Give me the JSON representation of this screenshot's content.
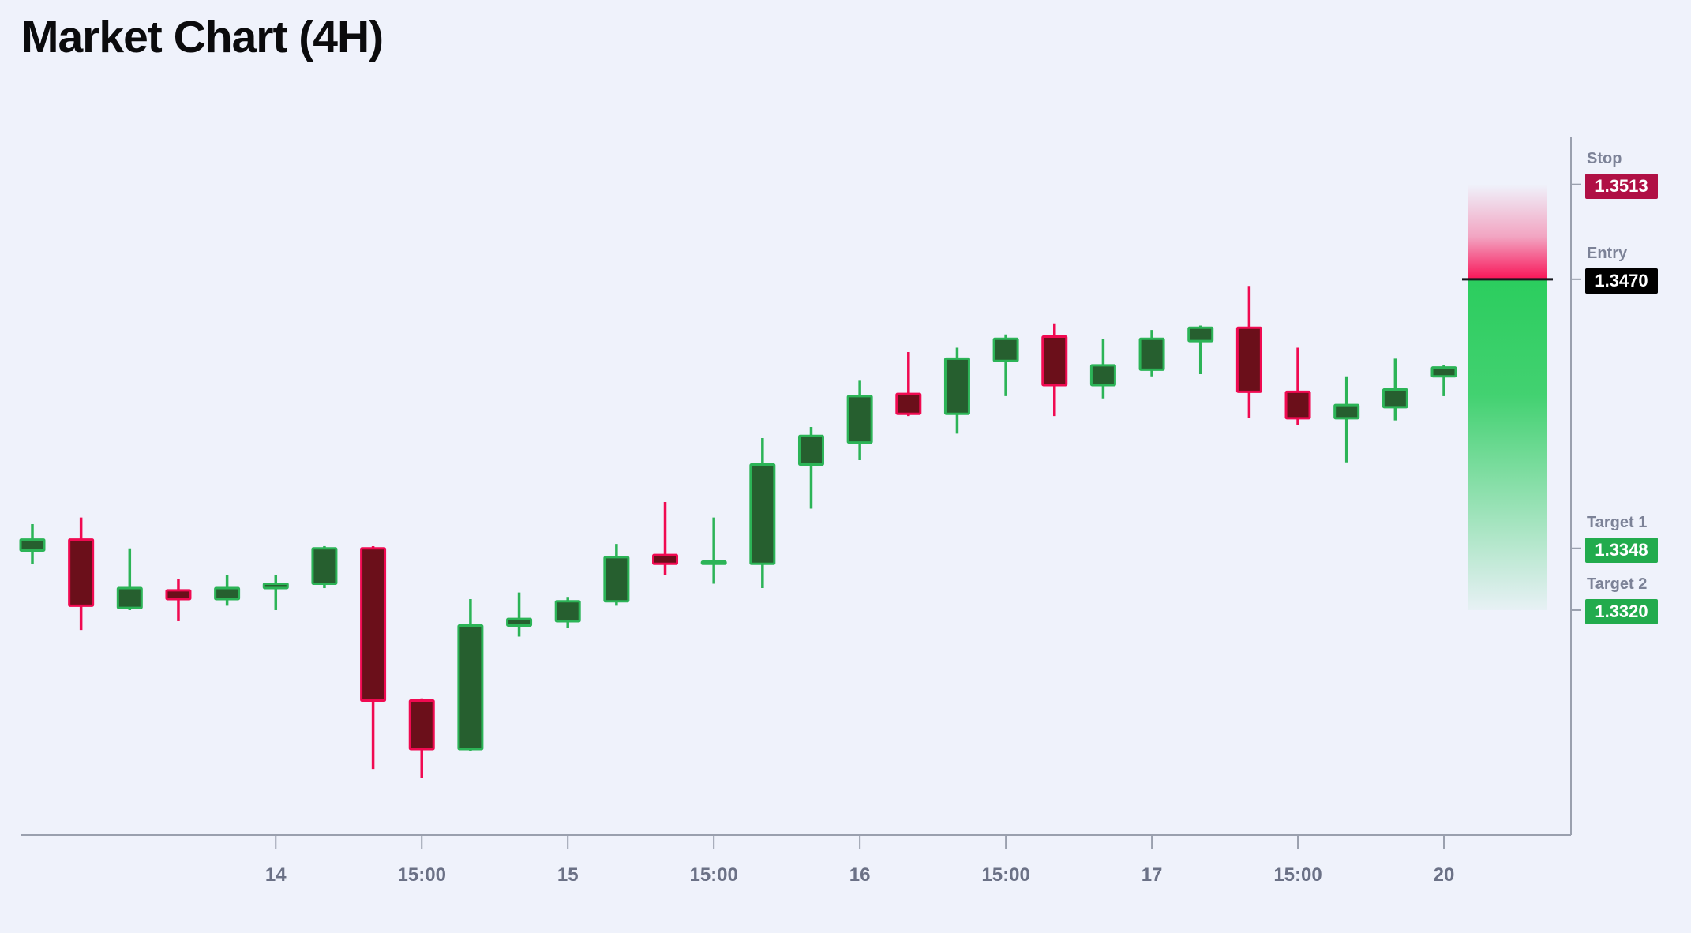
{
  "title": "Market Chart (4H)",
  "colors": {
    "background": "#eff2fb",
    "title_text": "#0b0b0d",
    "axis": "#9aa0ae",
    "x_tick_label": "#6b7186",
    "level_label": "#7c8297",
    "stop_badge": "#b01045",
    "entry_badge": "#000000",
    "target_badge": "#22ab4d",
    "bull_border": "#2cb457",
    "bull_fill": "#265f2f",
    "bear_border": "#f00a51",
    "bear_fill": "#6b0f1a",
    "risk_zone": "#f81558",
    "reward_zone": "#2bcd5e",
    "entry_line": "#15181d"
  },
  "levels": {
    "stop": {
      "label": "Stop",
      "value": "1.3513"
    },
    "entry": {
      "label": "Entry",
      "value": "1.3470"
    },
    "target1": {
      "label": "Target 1",
      "value": "1.3348"
    },
    "target2": {
      "label": "Target 2",
      "value": "1.3320"
    }
  },
  "chart_data": {
    "type": "candlestick",
    "title": "Market Chart (4H)",
    "timeframe": "4H",
    "ylim": [
      1.3218,
      1.3534
    ],
    "x_axis": {
      "tick_indices": [
        5,
        8,
        11,
        14,
        17,
        20,
        23,
        26,
        29
      ],
      "tick_labels": [
        "14",
        "15:00",
        "15",
        "15:00",
        "16",
        "15:00",
        "17",
        "15:00",
        "20"
      ]
    },
    "trade_levels": {
      "stop": 1.3513,
      "entry": 1.347,
      "target1": 1.3348,
      "target2": 1.332
    },
    "candles": [
      {
        "o": 1.3347,
        "h": 1.3359,
        "l": 1.3341,
        "c": 1.3352
      },
      {
        "o": 1.3352,
        "h": 1.3362,
        "l": 1.3311,
        "c": 1.3322
      },
      {
        "o": 1.3321,
        "h": 1.3348,
        "l": 1.332,
        "c": 1.333
      },
      {
        "o": 1.3329,
        "h": 1.3334,
        "l": 1.3315,
        "c": 1.3325
      },
      {
        "o": 1.3325,
        "h": 1.3336,
        "l": 1.3322,
        "c": 1.333
      },
      {
        "o": 1.333,
        "h": 1.3336,
        "l": 1.332,
        "c": 1.3332
      },
      {
        "o": 1.3332,
        "h": 1.3349,
        "l": 1.333,
        "c": 1.3348
      },
      {
        "o": 1.3348,
        "h": 1.3349,
        "l": 1.3248,
        "c": 1.3279
      },
      {
        "o": 1.3279,
        "h": 1.328,
        "l": 1.3244,
        "c": 1.3257
      },
      {
        "o": 1.3257,
        "h": 1.3325,
        "l": 1.3256,
        "c": 1.3313
      },
      {
        "o": 1.3313,
        "h": 1.3328,
        "l": 1.3308,
        "c": 1.3316
      },
      {
        "o": 1.3315,
        "h": 1.3326,
        "l": 1.3312,
        "c": 1.3324
      },
      {
        "o": 1.3324,
        "h": 1.335,
        "l": 1.3322,
        "c": 1.3344
      },
      {
        "o": 1.3345,
        "h": 1.3369,
        "l": 1.3336,
        "c": 1.3341
      },
      {
        "o": 1.3341,
        "h": 1.3362,
        "l": 1.3332,
        "c": 1.3342
      },
      {
        "o": 1.3341,
        "h": 1.3398,
        "l": 1.333,
        "c": 1.3386
      },
      {
        "o": 1.3386,
        "h": 1.3403,
        "l": 1.3366,
        "c": 1.3399
      },
      {
        "o": 1.3396,
        "h": 1.3424,
        "l": 1.3388,
        "c": 1.3417
      },
      {
        "o": 1.3418,
        "h": 1.3437,
        "l": 1.3408,
        "c": 1.3409
      },
      {
        "o": 1.3409,
        "h": 1.3439,
        "l": 1.34,
        "c": 1.3434
      },
      {
        "o": 1.3433,
        "h": 1.3445,
        "l": 1.3417,
        "c": 1.3443
      },
      {
        "o": 1.3444,
        "h": 1.345,
        "l": 1.3408,
        "c": 1.3422
      },
      {
        "o": 1.3422,
        "h": 1.3443,
        "l": 1.3416,
        "c": 1.3431
      },
      {
        "o": 1.3429,
        "h": 1.3447,
        "l": 1.3426,
        "c": 1.3443
      },
      {
        "o": 1.3442,
        "h": 1.3449,
        "l": 1.3427,
        "c": 1.3448
      },
      {
        "o": 1.3448,
        "h": 1.3467,
        "l": 1.3407,
        "c": 1.3419
      },
      {
        "o": 1.3419,
        "h": 1.3439,
        "l": 1.3404,
        "c": 1.3407
      },
      {
        "o": 1.3407,
        "h": 1.3426,
        "l": 1.3387,
        "c": 1.3413
      },
      {
        "o": 1.3412,
        "h": 1.3434,
        "l": 1.3406,
        "c": 1.342
      },
      {
        "o": 1.3426,
        "h": 1.3431,
        "l": 1.3417,
        "c": 1.343
      }
    ]
  }
}
